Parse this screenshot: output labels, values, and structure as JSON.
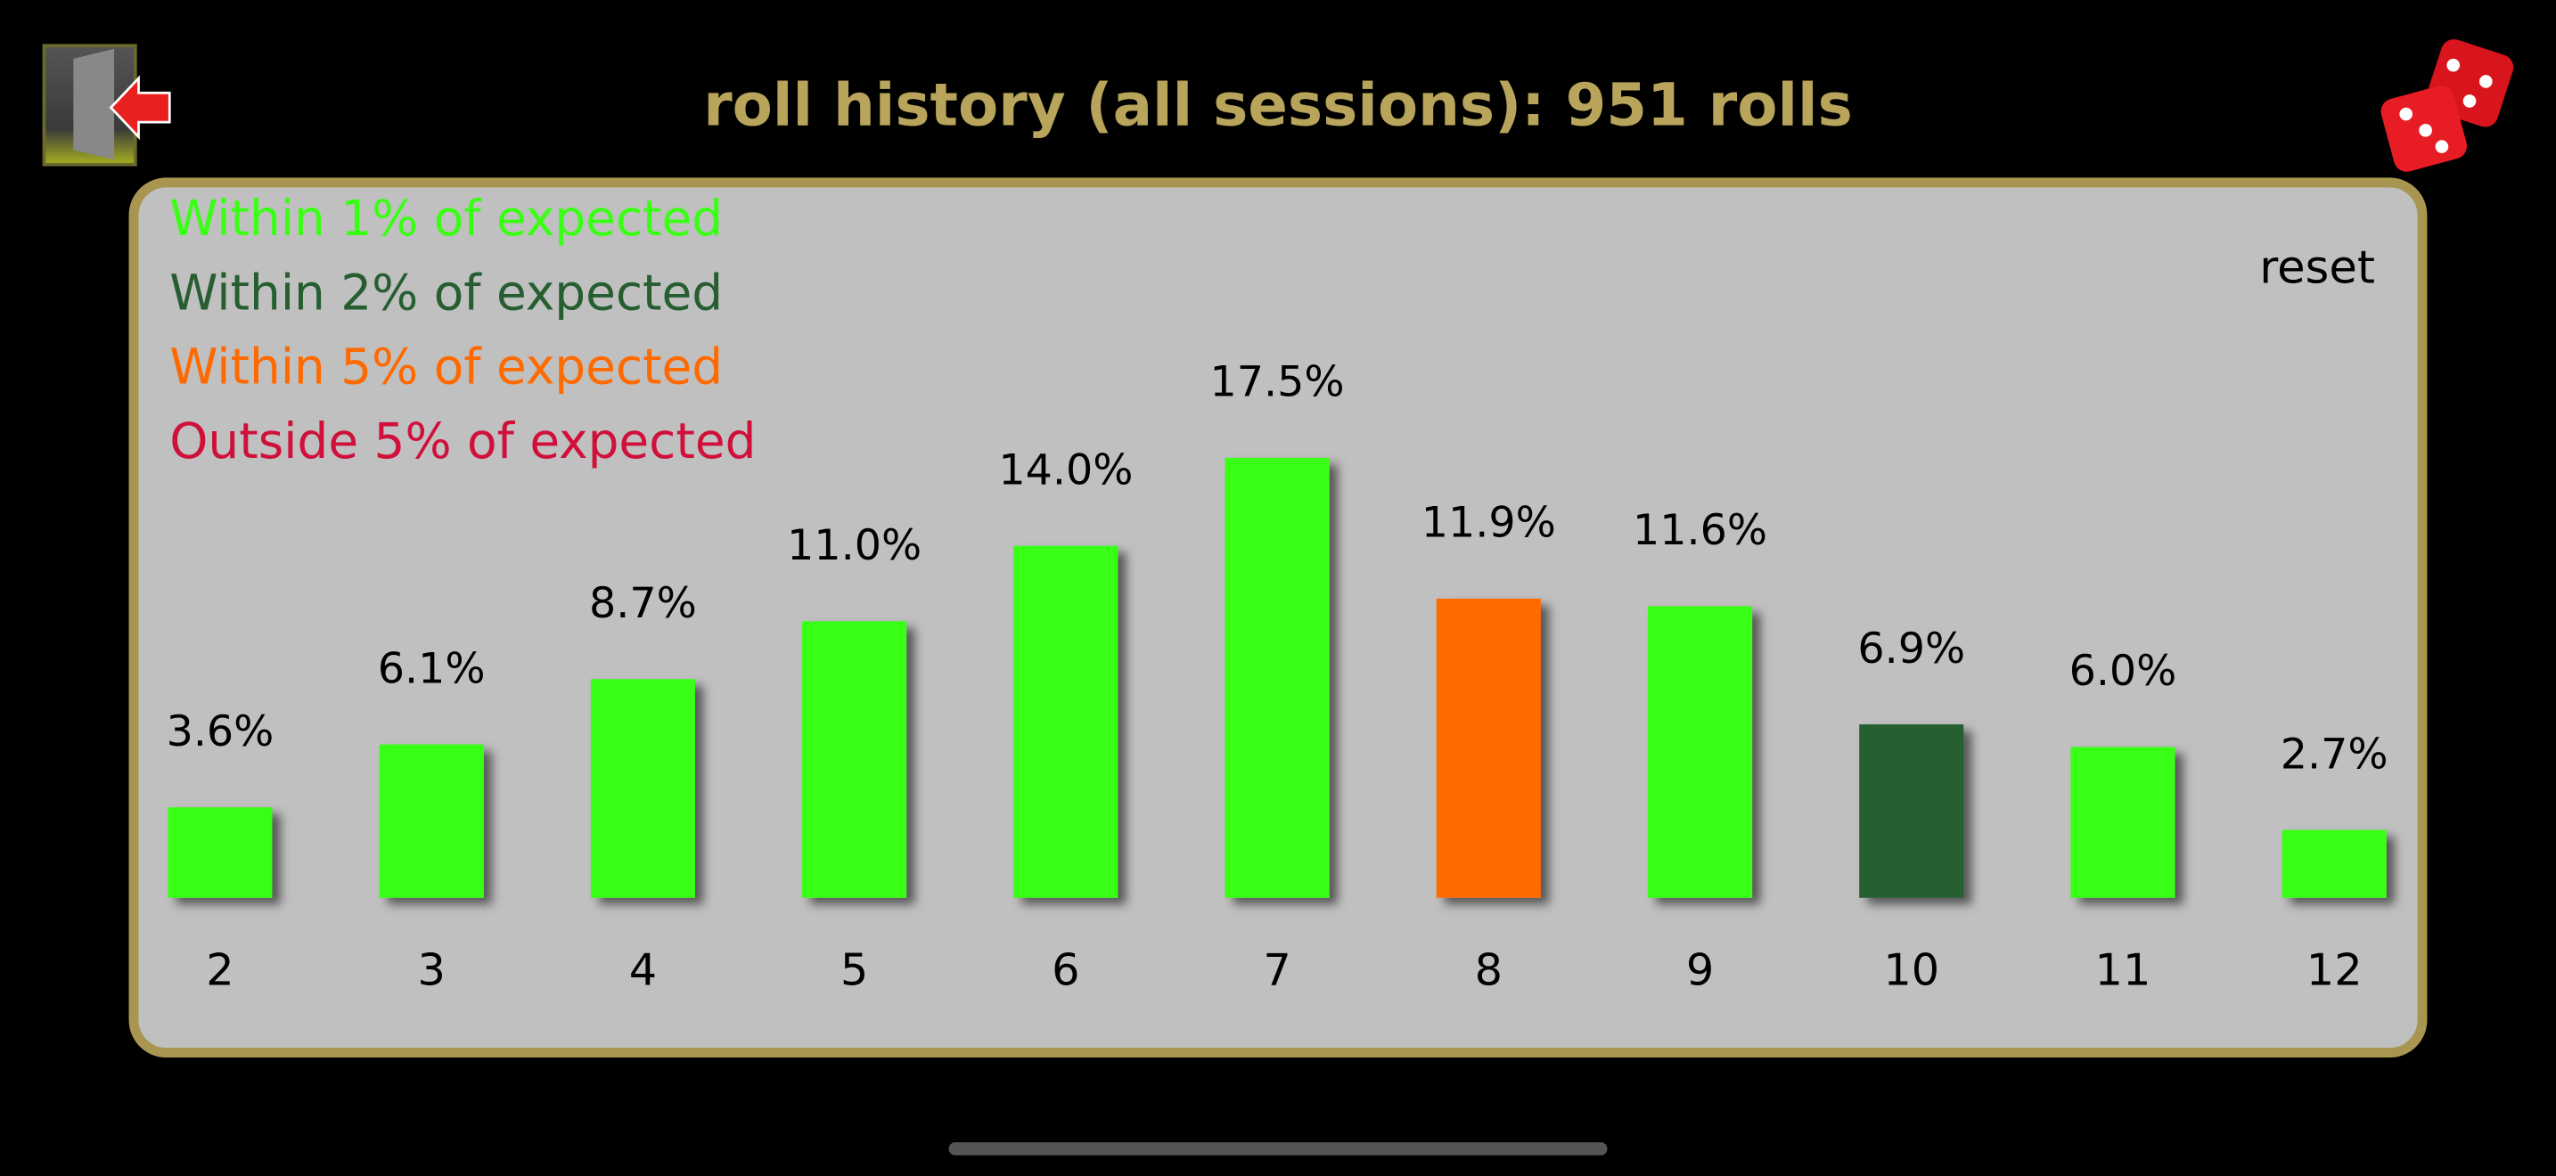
{
  "header": {
    "title": "roll history (all sessions): 951 rolls"
  },
  "reset": "reset",
  "chart_data": {
    "type": "bar",
    "legend": [
      {
        "name": "Within 1% of expected",
        "color": "#39ff14"
      },
      {
        "name": "Within 2% of expected",
        "color": "#265e31"
      },
      {
        "name": "Within 5% of expected",
        "color": "#ff6a00"
      },
      {
        "name": "Outside 5% of expected",
        "color": "#d0103a"
      }
    ],
    "categories": [
      "2",
      "3",
      "4",
      "5",
      "6",
      "7",
      "8",
      "9",
      "10",
      "11",
      "12"
    ],
    "values": [
      3.6,
      6.1,
      8.7,
      11.0,
      14.0,
      17.5,
      11.9,
      11.6,
      6.9,
      6.0,
      2.7
    ],
    "value_labels": [
      "3.6%",
      "6.1%",
      "8.7%",
      "11.0%",
      "14.0%",
      "17.5%",
      "11.9%",
      "11.6%",
      "6.9%",
      "6.0%",
      "2.7%"
    ],
    "colors": [
      "#39ff14",
      "#39ff14",
      "#39ff14",
      "#39ff14",
      "#39ff14",
      "#39ff14",
      "#ff6a00",
      "#39ff14",
      "#265e31",
      "#39ff14",
      "#39ff14"
    ]
  }
}
